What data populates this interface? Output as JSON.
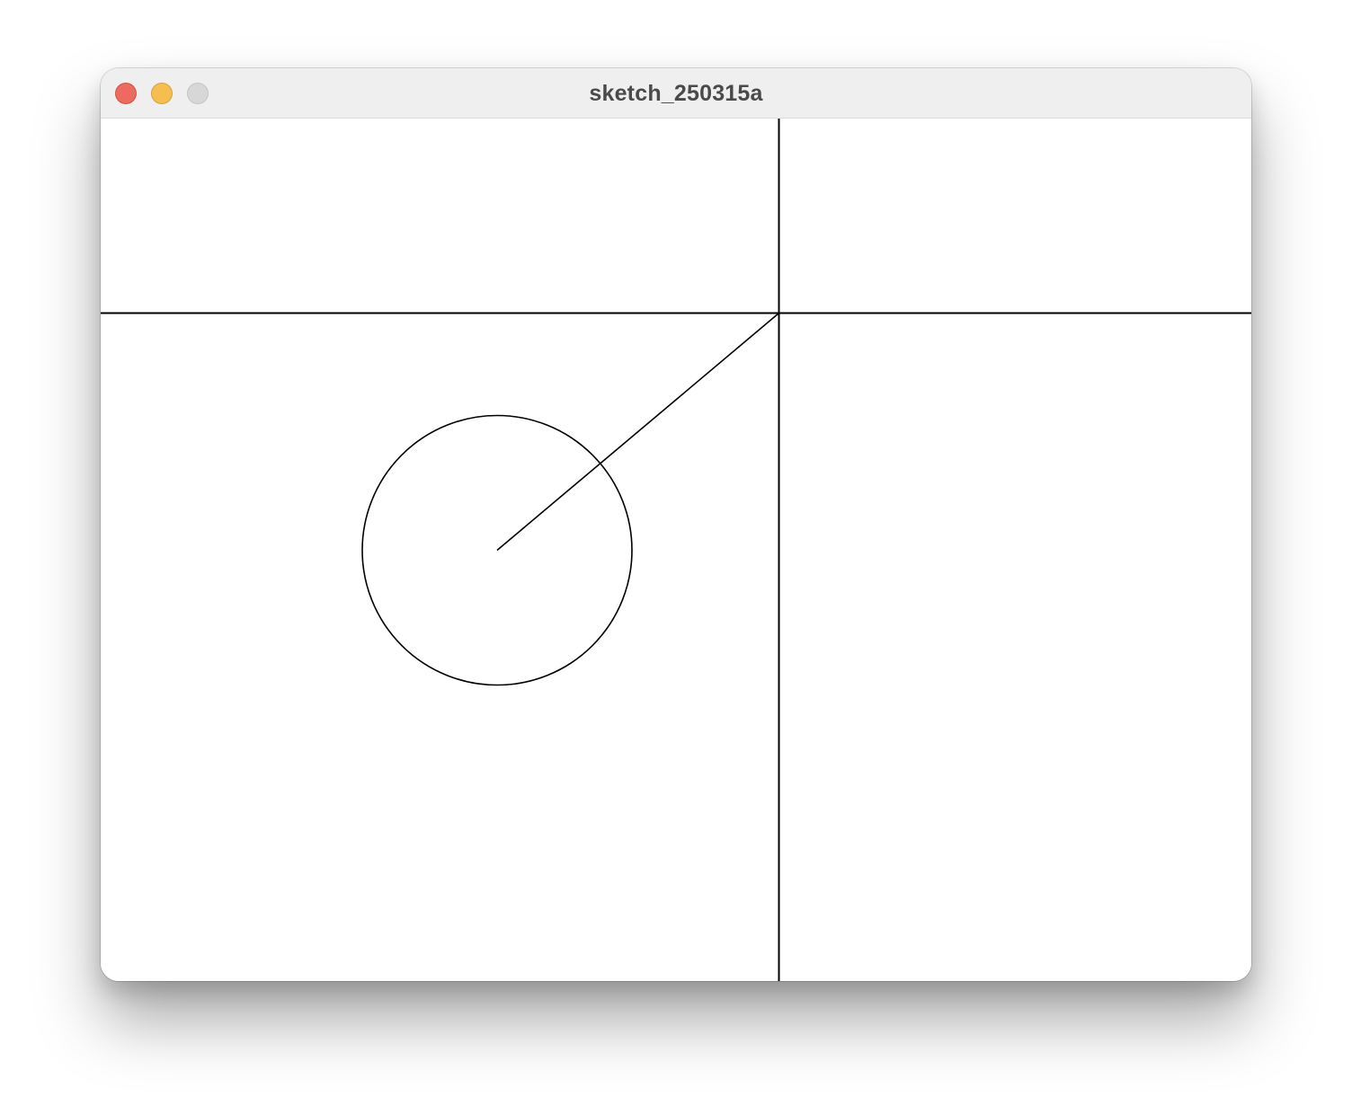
{
  "window": {
    "title": "sketch_250315a",
    "controls": {
      "close_color": "#ec6a5e",
      "minimize_color": "#f4bf4f",
      "zoom_color": "#d7d7d7"
    }
  },
  "sketch": {
    "background": "#ffffff",
    "stroke": "#000000",
    "shapes": [
      "vertical-line",
      "horizontal-line",
      "circle",
      "radius-line"
    ]
  }
}
